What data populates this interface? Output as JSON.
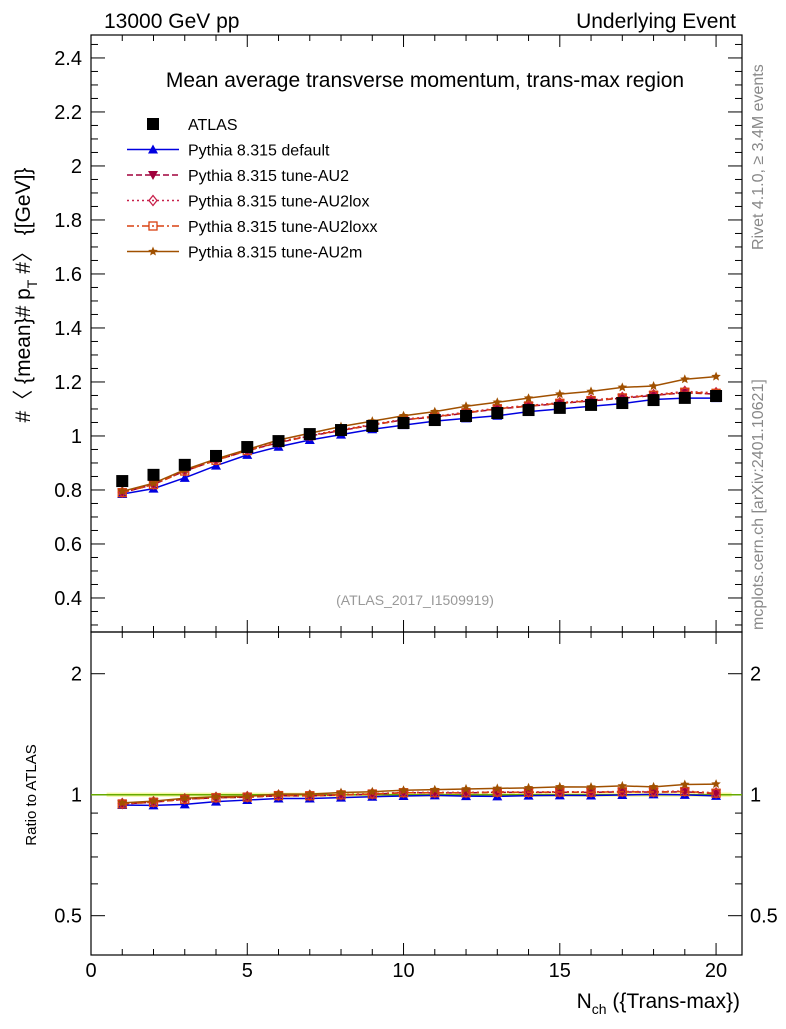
{
  "header": {
    "left": "13000 GeV pp",
    "right": "Underlying Event"
  },
  "side_labels": {
    "rivet": "Rivet 4.1.0, ≥ 3.4M events",
    "mcplots": "mcplots.cern.ch [arXiv:2401.10621]"
  },
  "chart_data": {
    "type": "line",
    "title": "Mean average transverse momentum, trans-max region",
    "watermark": "(ATLAS_2017_I1509919)",
    "ylabel_main": "#〈 {mean}# p",
    "ylabel_sub": "T",
    "ylabel_tail": " #〉 {[GeV]}",
    "ylabel_ratio": "Ratio to ATLAS",
    "xlabel_main": "N",
    "xlabel_sub": "ch",
    "xlabel_tail": " ({Trans-max})",
    "xlim": [
      0,
      20.83
    ],
    "ylim": [
      0.274,
      2.485
    ],
    "ratio_ylim": [
      0.34,
      2.54
    ],
    "ratio_scale": "log",
    "x_ticks": [
      "0",
      "5",
      "10",
      "15",
      "20"
    ],
    "y_ticks": [
      "0.4",
      "0.6",
      "0.8",
      "1",
      "1.2",
      "1.4",
      "1.6",
      "1.8",
      "2",
      "2.2",
      "2.4"
    ],
    "ratio_ticks": [
      "0.5",
      "1",
      "2"
    ],
    "legend_placement": "top-left",
    "x": [
      1,
      2,
      3,
      4,
      5,
      6,
      7,
      8,
      9,
      10,
      11,
      12,
      13,
      14,
      15,
      16,
      17,
      18,
      19,
      20
    ],
    "series": [
      {
        "name": "ATLAS",
        "color": "#000000",
        "marker": "square",
        "line": "none",
        "values": [
          0.833,
          0.856,
          0.893,
          0.926,
          0.959,
          0.981,
          1.007,
          1.022,
          1.037,
          1.048,
          1.059,
          1.074,
          1.085,
          1.096,
          1.104,
          1.115,
          1.122,
          1.133,
          1.141,
          1.148
        ]
      },
      {
        "name": "Pythia 8.315 default",
        "color": "#0000e0",
        "marker": "triangle",
        "line": "solid",
        "values": [
          0.785,
          0.805,
          0.845,
          0.89,
          0.93,
          0.96,
          0.985,
          1.005,
          1.025,
          1.04,
          1.055,
          1.065,
          1.075,
          1.09,
          1.1,
          1.11,
          1.12,
          1.135,
          1.14,
          1.14
        ]
      },
      {
        "name": "Pythia 8.315 tune-AU2",
        "color": "#a0003c",
        "marker": "triangle-down",
        "line": "dashed",
        "values": [
          0.79,
          0.82,
          0.87,
          0.91,
          0.945,
          0.975,
          1.0,
          1.02,
          1.04,
          1.06,
          1.07,
          1.085,
          1.1,
          1.11,
          1.12,
          1.13,
          1.14,
          1.15,
          1.16,
          1.155
        ]
      },
      {
        "name": "Pythia 8.315 tune-AU2lox",
        "color": "#c8204a",
        "marker": "diamond-open",
        "line": "dotted",
        "values": [
          0.792,
          0.822,
          0.872,
          0.912,
          0.948,
          0.978,
          1.003,
          1.023,
          1.043,
          1.062,
          1.073,
          1.088,
          1.103,
          1.113,
          1.123,
          1.133,
          1.143,
          1.153,
          1.165,
          1.16
        ]
      },
      {
        "name": "Pythia 8.315 tune-AU2loxx",
        "color": "#d84010",
        "marker": "square-open",
        "line": "dashdot",
        "values": [
          0.79,
          0.82,
          0.87,
          0.91,
          0.946,
          0.976,
          1.001,
          1.021,
          1.041,
          1.06,
          1.071,
          1.086,
          1.101,
          1.111,
          1.121,
          1.131,
          1.141,
          1.151,
          1.162,
          1.158
        ]
      },
      {
        "name": "Pythia 8.315 tune-AU2m",
        "color": "#a05000",
        "marker": "star",
        "line": "solid",
        "values": [
          0.795,
          0.825,
          0.875,
          0.915,
          0.95,
          0.985,
          1.01,
          1.035,
          1.055,
          1.075,
          1.09,
          1.11,
          1.125,
          1.14,
          1.155,
          1.165,
          1.18,
          1.185,
          1.21,
          1.22
        ]
      }
    ]
  }
}
